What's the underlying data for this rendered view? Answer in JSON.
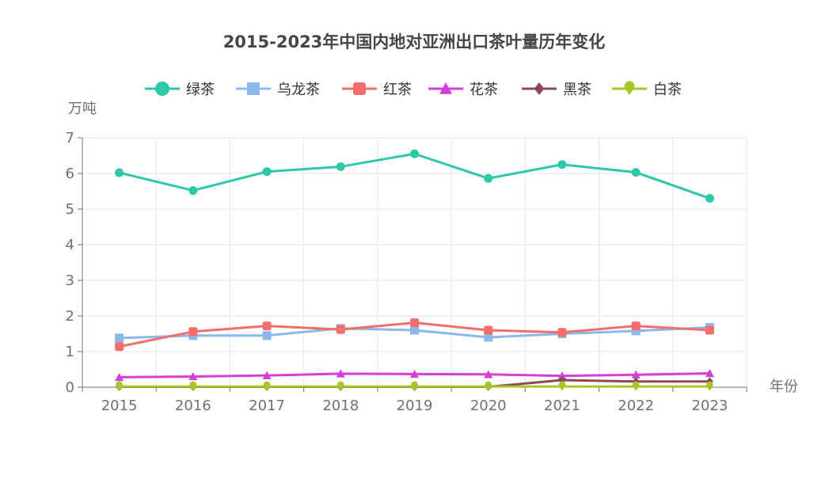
{
  "chart_data": {
    "type": "line",
    "title": "2015-2023年中国内地对亚洲出口茶叶量历年变化",
    "ylabel": "万吨",
    "xlabel": "年份",
    "ylim": [
      0,
      7
    ],
    "yticks": [
      "0",
      "1",
      "2",
      "3",
      "4",
      "5",
      "6",
      "7"
    ],
    "categories": [
      "2015",
      "2016",
      "2017",
      "2018",
      "2019",
      "2020",
      "2021",
      "2022",
      "2023"
    ],
    "grid": true,
    "legend_position": "top-center",
    "series": [
      {
        "name": "绿茶",
        "color": "#2ec7a9",
        "marker": "circle",
        "values": [
          6.02,
          5.52,
          6.05,
          6.19,
          6.55,
          5.86,
          6.25,
          6.03,
          5.3
        ]
      },
      {
        "name": "乌龙茶",
        "color": "#8ab8eb",
        "marker": "square",
        "values": [
          1.38,
          1.45,
          1.45,
          1.65,
          1.6,
          1.4,
          1.5,
          1.58,
          1.68
        ]
      },
      {
        "name": "红茶",
        "color": "#f46d6d",
        "marker": "roundRect",
        "values": [
          1.14,
          1.56,
          1.72,
          1.62,
          1.81,
          1.6,
          1.54,
          1.72,
          1.6
        ]
      },
      {
        "name": "花茶",
        "color": "#d43fd9",
        "marker": "triangle",
        "values": [
          0.28,
          0.3,
          0.33,
          0.38,
          0.37,
          0.36,
          0.32,
          0.35,
          0.39
        ]
      },
      {
        "name": "黑茶",
        "color": "#8a4a55",
        "marker": "diamond",
        "values": [
          0.01,
          0.01,
          0.01,
          0.01,
          0.01,
          0.01,
          0.2,
          0.16,
          0.16
        ]
      },
      {
        "name": "白茶",
        "color": "#a6c72a",
        "marker": "pin",
        "values": [
          0.02,
          0.02,
          0.02,
          0.02,
          0.02,
          0.02,
          0.02,
          0.02,
          0.02
        ]
      }
    ]
  }
}
